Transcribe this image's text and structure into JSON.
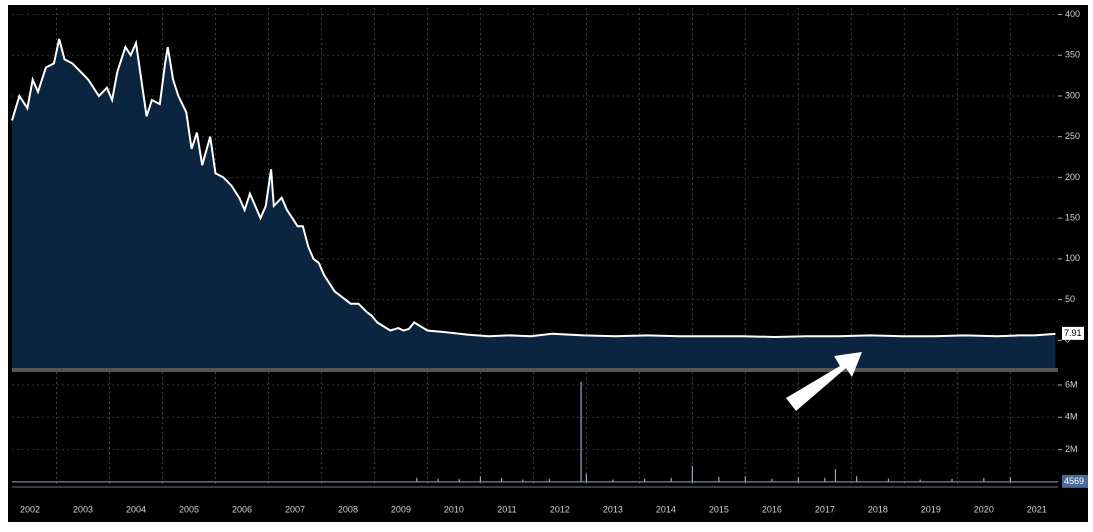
{
  "chart_data": [
    {
      "type": "area",
      "color": "#0b2540",
      "line_color": "#ffffff",
      "x": [
        2002.16,
        2002.3,
        2002.45,
        2002.55,
        2002.65,
        2002.8,
        2002.95,
        2003.05,
        2003.15,
        2003.3,
        2003.45,
        2003.6,
        2003.8,
        2003.95,
        2004.05,
        2004.15,
        2004.3,
        2004.4,
        2004.5,
        2004.6,
        2004.7,
        2004.8,
        2004.95,
        2005.05,
        2005.1,
        2005.2,
        2005.3,
        2005.45,
        2005.55,
        2005.65,
        2005.75,
        2005.9,
        2006.0,
        2006.15,
        2006.3,
        2006.45,
        2006.55,
        2006.65,
        2006.75,
        2006.85,
        2006.95,
        2007.05,
        2007.1,
        2007.25,
        2007.35,
        2007.45,
        2007.55,
        2007.65,
        2007.75,
        2007.85,
        2007.95,
        2008.05,
        2008.15,
        2008.25,
        2008.35,
        2008.45,
        2008.55,
        2008.7,
        2008.85,
        2008.95,
        2009.05,
        2009.15,
        2009.3,
        2009.45,
        2009.55,
        2009.65,
        2009.75,
        2010.0,
        2010.35,
        2010.75,
        2011.15,
        2011.55,
        2011.95,
        2012.35,
        2012.95,
        2013.55,
        2014.15,
        2014.75,
        2015.35,
        2015.95,
        2016.55,
        2017.15,
        2017.75,
        2018.35,
        2018.95,
        2019.55,
        2020.15,
        2020.75,
        2021.15,
        2021.45,
        2021.85
      ],
      "values": [
        270,
        300,
        285,
        320,
        305,
        335,
        340,
        370,
        345,
        340,
        330,
        320,
        300,
        310,
        295,
        330,
        360,
        350,
        365,
        320,
        275,
        295,
        290,
        340,
        360,
        320,
        300,
        280,
        235,
        255,
        215,
        250,
        205,
        200,
        190,
        175,
        160,
        180,
        165,
        150,
        165,
        210,
        165,
        175,
        160,
        150,
        140,
        140,
        115,
        100,
        95,
        80,
        70,
        60,
        55,
        50,
        45,
        45,
        35,
        30,
        22,
        18,
        12,
        15,
        12,
        14,
        22,
        12,
        10,
        7,
        5,
        6,
        5,
        8,
        6,
        5,
        6,
        5,
        5,
        5,
        4,
        5,
        5,
        6,
        5,
        5,
        6,
        5,
        6,
        6,
        7.91
      ],
      "xlim": [
        2002.16,
        2021.9
      ],
      "ylim": [
        -34,
        408
      ],
      "xticks": [
        2002,
        2003,
        2004,
        2005,
        2006,
        2007,
        2008,
        2009,
        2010,
        2011,
        2012,
        2013,
        2014,
        2015,
        2016,
        2017,
        2018,
        2019,
        2020,
        2021
      ],
      "yticks": [
        0,
        50,
        100,
        150,
        200,
        250,
        300,
        350,
        400
      ],
      "grid": true
    },
    {
      "type": "bar",
      "color": "#8fa8c8",
      "x": [
        2009.8,
        2010.2,
        2010.6,
        2011.0,
        2011.4,
        2011.8,
        2012.3,
        2012.9,
        2013.0,
        2013.5,
        2014.1,
        2014.6,
        2015.0,
        2015.5,
        2016.0,
        2016.5,
        2017.0,
        2017.5,
        2017.7,
        2018.1,
        2018.7,
        2019.3,
        2019.9,
        2020.5,
        2021.0,
        2021.85
      ],
      "values": [
        250000,
        200000,
        180000,
        350000,
        250000,
        150000,
        200000,
        6200000,
        500000,
        150000,
        200000,
        250000,
        1000000,
        300000,
        350000,
        200000,
        300000,
        250000,
        800000,
        350000,
        200000,
        150000,
        200000,
        250000,
        300000,
        4569
      ],
      "xlim": [
        2002.16,
        2021.9
      ],
      "ylim": [
        -190000,
        6800000
      ],
      "yticks": [
        {
          "value": 2000000,
          "label": "2M"
        },
        {
          "value": 4000000,
          "label": "4M"
        },
        {
          "value": 6000000,
          "label": "6M"
        }
      ]
    }
  ]
}
